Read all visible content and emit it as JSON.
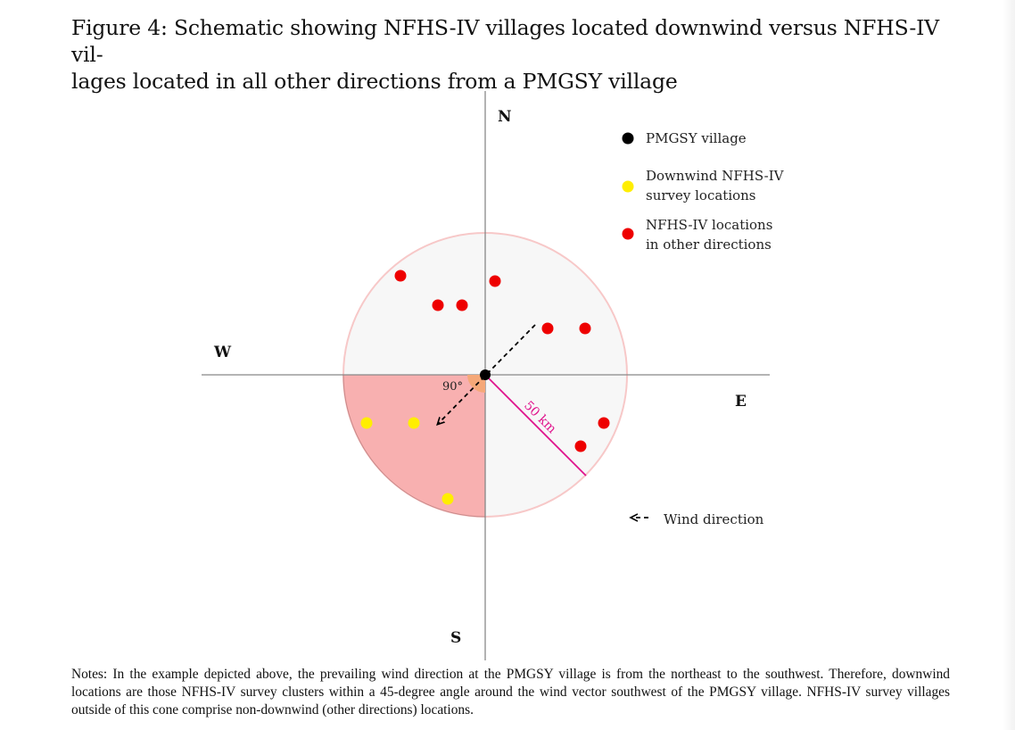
{
  "caption": "Figure 4: Schematic showing NFHS-IV villages located downwind versus NFHS-IV villages located in all other directions from a PMGSY village",
  "caption_line1": "Figure 4: Schematic showing NFHS-IV villages located downwind versus NFHS-IV vil-",
  "caption_line2": "lages located in all other directions from a PMGSY village",
  "directions": {
    "north": "N",
    "south": "S",
    "east": "E",
    "west": "W"
  },
  "angle_label": "90°",
  "radius_label": "50 km",
  "legend": {
    "pmgsy": "PMGSY village",
    "downwind_line1": "Downwind NFHS-IV",
    "downwind_line2": "survey locations",
    "other_line1": "NFHS-IV locations",
    "other_line2": "in other directions",
    "wind": "Wind direction"
  },
  "colors": {
    "pmgsy": "#000000",
    "downwind": "#ffee00",
    "other": "#ee0000",
    "sector_fill": "#f8b0b0",
    "circle_fill": "#f7f7f7",
    "circle_stroke": "#f7c8c8",
    "radius_line": "#e0138c",
    "angle_wedge": "#f5a878"
  },
  "notes": "Notes: In the example depicted above, the prevailing wind direction at the PMGSY village is from the northeast to the southwest. Therefore, downwind locations are those NFHS-IV survey clusters within a 45-degree angle around the wind vector southwest of the PMGSY village. NFHS-IV survey villages outside of this cone comprise non-downwind (other directions) locations."
}
